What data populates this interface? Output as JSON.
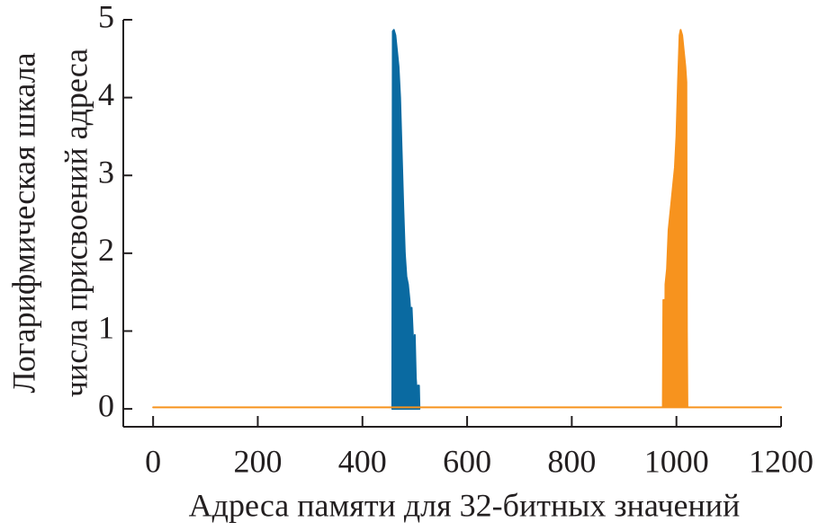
{
  "chart_data": {
    "type": "area",
    "xlabel": "Адреса памяти для 32-битных значений",
    "ylabel": [
      "Логарифмическая шкала",
      "числа присвоений адреса"
    ],
    "xlim": [
      -57,
      1200
    ],
    "ylim": [
      -0.23,
      5
    ],
    "xticks": [
      0,
      200,
      400,
      600,
      800,
      1000,
      1200
    ],
    "yticks": [
      0,
      1,
      2,
      3,
      4,
      5
    ],
    "series": [
      {
        "color": "#0a6aa1",
        "x": [
          457,
          458,
          460,
          463,
          466,
          469,
          472,
          475,
          478,
          481,
          484,
          487,
          490,
          492,
          494,
          496,
          498,
          500,
          502,
          504,
          506,
          508,
          509
        ],
        "values": [
          0,
          4.85,
          4.87,
          4.8,
          4.6,
          4.4,
          4.0,
          3.3,
          2.6,
          2.0,
          1.7,
          1.6,
          1.4,
          1.2,
          1.3,
          1.0,
          0.7,
          0.95,
          0.4,
          0.2,
          0.3,
          0.3,
          0
        ]
      },
      {
        "color": "#f7931e",
        "x": [
          0,
          974,
          975,
          977,
          978,
          979,
          982,
          985,
          988,
          991,
          994,
          997,
          1000,
          1003,
          1006,
          1008,
          1011,
          1014,
          1017,
          1019,
          1020,
          1021,
          1200
        ],
        "values": [
          0.02,
          0.02,
          1.4,
          1.4,
          0.02,
          1.6,
          1.8,
          2.3,
          2.5,
          2.7,
          2.9,
          3.1,
          3.5,
          4.2,
          4.8,
          4.87,
          4.8,
          4.6,
          4.4,
          4.2,
          1.0,
          0.02,
          0.02
        ]
      }
    ]
  }
}
